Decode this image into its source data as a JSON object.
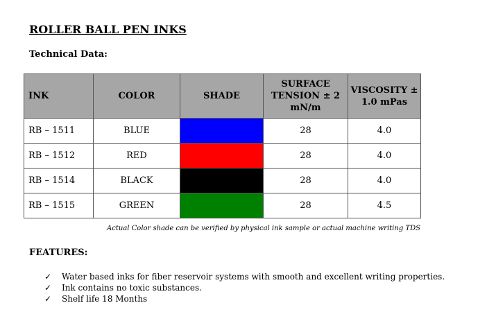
{
  "header": {
    "title": "ROLLER BALL PEN INKS",
    "subtitle": "Technical Data:"
  },
  "table": {
    "columns": [
      "INK",
      "COLOR",
      "SHADE",
      "SURFACE TENSION ± 2 mN/m",
      "VISCOSITY ± 1.0 mPas"
    ],
    "rows": [
      {
        "ink": "RB – 1511",
        "color": "BLUE",
        "shade": "#0000ff",
        "tension": "28",
        "viscosity": "4.0"
      },
      {
        "ink": "RB – 1512",
        "color": "RED",
        "shade": "#ff0000",
        "tension": "28",
        "viscosity": "4.0"
      },
      {
        "ink": "RB – 1514",
        "color": "BLACK",
        "shade": "#000000",
        "tension": "28",
        "viscosity": "4.0"
      },
      {
        "ink": "RB – 1515",
        "color": "GREEN",
        "shade": "#008000",
        "tension": "28",
        "viscosity": "4.5"
      }
    ],
    "note": "Actual Color shade can be verified by physical ink sample or actual machine writing TDS"
  },
  "features": {
    "heading": "FEATURES:",
    "items": [
      "Water based inks for fiber reservoir systems with smooth and excellent writing properties.",
      "Ink contains no toxic substances.",
      "Shelf life 18 Months"
    ]
  }
}
